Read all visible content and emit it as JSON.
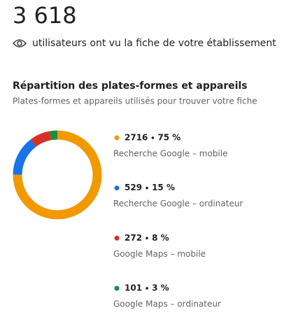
{
  "header": {
    "total": "3 618",
    "subtitle": "utilisateurs ont vu la fiche de votre établissement"
  },
  "chart_data": {
    "type": "pie",
    "title": "Répartition des plates-formes et appareils",
    "subtitle": "Plates-formes et appareils utilisés pour trouver votre fiche",
    "categories": [
      "Recherche Google – mobile",
      "Recherche Google – ordinateur",
      "Google Maps – mobile",
      "Google Maps – ordinateur"
    ],
    "values": [
      2716,
      529,
      272,
      101
    ],
    "percent_labels": [
      "75 %",
      "15 %",
      "8 %",
      "3 %"
    ],
    "colors": [
      "#f29900",
      "#1a73e8",
      "#d93025",
      "#1e8e3e"
    ]
  }
}
